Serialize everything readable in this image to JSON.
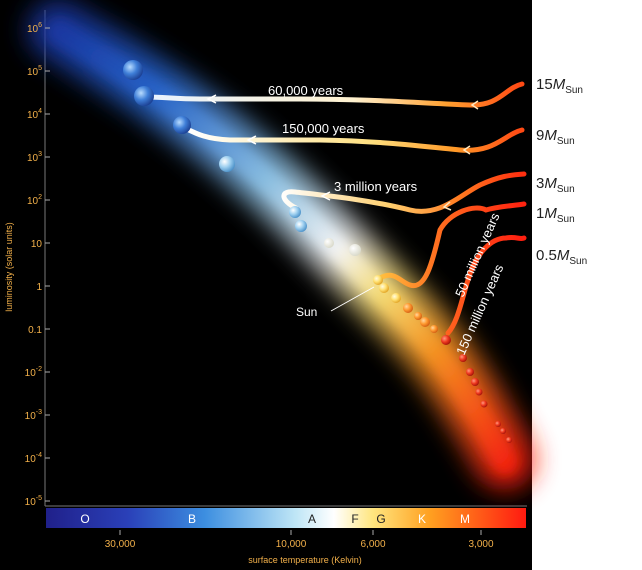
{
  "y_axis": {
    "label": "luminosity (solar units)",
    "ticks": [
      {
        "base": "10",
        "exp": "6"
      },
      {
        "base": "10",
        "exp": "5"
      },
      {
        "base": "10",
        "exp": "4"
      },
      {
        "base": "10",
        "exp": "3"
      },
      {
        "base": "10",
        "exp": "2"
      },
      {
        "base": "10",
        "exp": ""
      },
      {
        "base": "1",
        "exp": ""
      },
      {
        "base": "0.1",
        "exp": ""
      },
      {
        "base": "10",
        "exp": "-2"
      },
      {
        "base": "10",
        "exp": "-3"
      },
      {
        "base": "10",
        "exp": "-4"
      },
      {
        "base": "10",
        "exp": "-5"
      }
    ]
  },
  "x_axis": {
    "label": "surface temperature (Kelvin)",
    "ticks": [
      "30,000",
      "10,000",
      "6,000",
      "3,000"
    ]
  },
  "spectral_classes": [
    "O",
    "B",
    "A",
    "F",
    "G",
    "K",
    "M"
  ],
  "tracks": [
    {
      "mass": "15",
      "unit": "M",
      "sub": "Sun",
      "time": "60,000 years",
      "color_start": "#e8f2ff",
      "color_end": "#ff4a14"
    },
    {
      "mass": "9",
      "unit": "M",
      "sub": "Sun",
      "time": "150,000 years",
      "color_start": "#ffffff",
      "color_end": "#ff5818"
    },
    {
      "mass": "3",
      "unit": "M",
      "sub": "Sun",
      "time": "3 million years",
      "color_start": "#ffffff",
      "color_end": "#ff3c10"
    },
    {
      "mass": "1",
      "unit": "M",
      "sub": "Sun",
      "time": "50 million years",
      "color_start": "#ffb830",
      "color_end": "#ff2a10"
    },
    {
      "mass": "0.5",
      "unit": "M",
      "sub": "Sun",
      "time": "150 million years",
      "color_start": "#ff5a20",
      "color_end": "#ff2a10"
    }
  ],
  "sun_label": "Sun",
  "colors": {
    "background": "#000000",
    "tick_label": "#f2b04a",
    "hot": "#3a6ee0",
    "cool": "#ff2a10"
  }
}
